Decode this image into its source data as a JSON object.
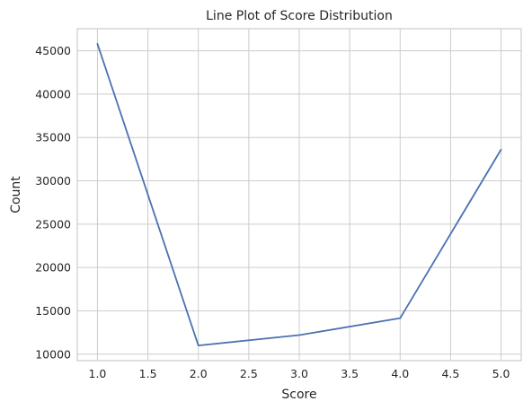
{
  "chart_data": {
    "type": "line",
    "title": "Line Plot of Score Distribution",
    "xlabel": "Score",
    "ylabel": "Count",
    "x": [
      1.0,
      2.0,
      3.0,
      4.0,
      5.0
    ],
    "series": [
      {
        "values": [
          45800,
          11000,
          12200,
          14150,
          33600
        ],
        "color": "#4c72b0"
      }
    ],
    "xlim": [
      0.8,
      5.2
    ],
    "ylim": [
      9250,
      47550
    ],
    "xticks": [
      "1.0",
      "1.5",
      "2.0",
      "2.5",
      "3.0",
      "3.5",
      "4.0",
      "4.5",
      "5.0"
    ],
    "yticks": [
      "10000",
      "15000",
      "20000",
      "25000",
      "30000",
      "35000",
      "40000",
      "45000"
    ],
    "grid": true,
    "legend": "none",
    "colors": {
      "grid": "#cccccc",
      "text": "#262626",
      "background": "#ffffff"
    }
  }
}
